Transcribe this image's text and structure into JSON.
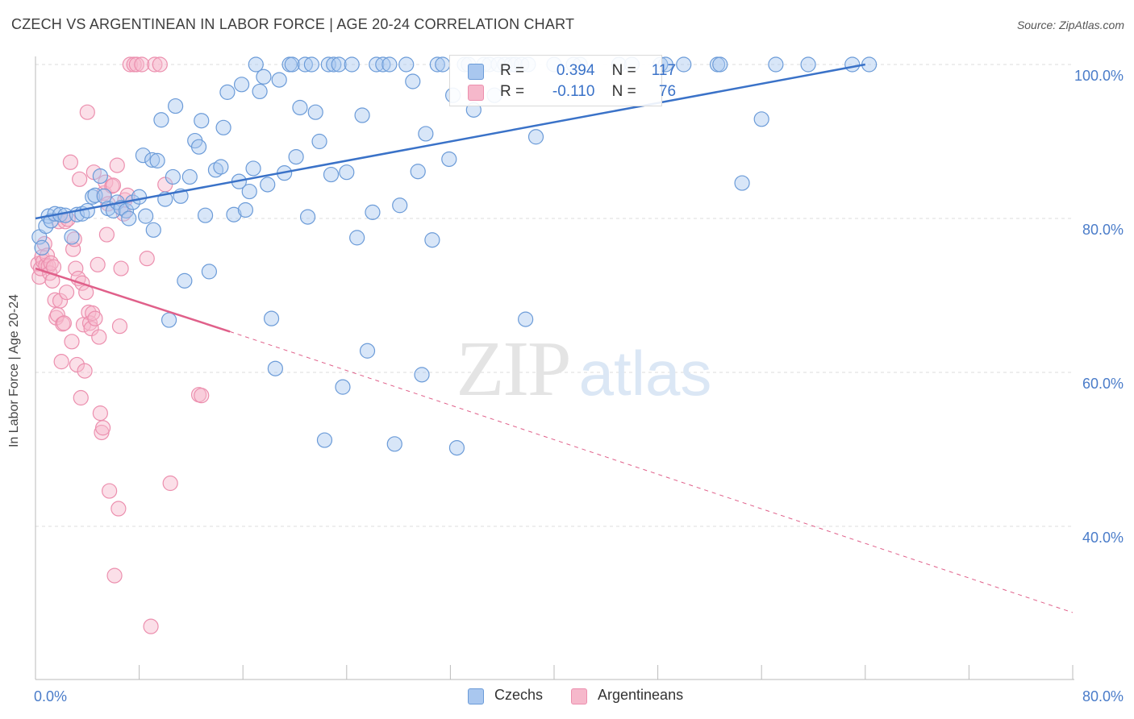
{
  "title": "CZECH VS ARGENTINEAN IN LABOR FORCE | AGE 20-24 CORRELATION CHART",
  "source": "Source: ZipAtlas.com",
  "watermark": {
    "zip": "ZIP",
    "atlas": "atlas"
  },
  "colors": {
    "czech_fill": "#a9c7ef",
    "czech_stroke": "#6b9bd8",
    "czech_line": "#3a72c8",
    "arg_fill": "#f6b8cb",
    "arg_stroke": "#ec8fae",
    "arg_line": "#e0608a",
    "grid": "#dcdcdc",
    "tick_label": "#4a7cc9"
  },
  "legend": {
    "czech": {
      "r_label": "R =",
      "r_value": "0.394",
      "n_label": "N =",
      "n_value": "117"
    },
    "arg": {
      "r_label": "R =",
      "r_value": "-0.110",
      "n_label": "N =",
      "n_value": "76"
    }
  },
  "bottom_legend": {
    "czech": "Czechs",
    "arg": "Argentineans"
  },
  "chart_data": {
    "type": "scatter",
    "title": "CZECH VS ARGENTINEAN IN LABOR FORCE | AGE 20-24 CORRELATION CHART",
    "ylabel": "In Labor Force | Age 20-24",
    "xlabel": "",
    "xlim": [
      0,
      80
    ],
    "ylim": [
      20,
      102
    ],
    "x_tick_labels": [
      {
        "value": 0,
        "label": "0.0%"
      },
      {
        "value": 80,
        "label": "80.0%"
      }
    ],
    "y_tick_labels": [
      {
        "value": 100,
        "label": "100.0%"
      },
      {
        "value": 80,
        "label": "80.0%"
      },
      {
        "value": 60,
        "label": "60.0%"
      },
      {
        "value": 40,
        "label": "40.0%"
      }
    ],
    "grid": true,
    "legend_position": "top-center",
    "series": [
      {
        "name": "Czechs",
        "r": 0.394,
        "n": 117,
        "trend": {
          "x0": 0,
          "y0": 80.0,
          "x1": 64,
          "y1": 100.0
        },
        "points": [
          [
            0.3,
            77.6
          ],
          [
            0.5,
            76.2
          ],
          [
            0.8,
            79.0
          ],
          [
            1.0,
            80.3
          ],
          [
            1.2,
            79.7
          ],
          [
            1.5,
            80.6
          ],
          [
            1.9,
            80.5
          ],
          [
            2.3,
            80.4
          ],
          [
            2.8,
            77.6
          ],
          [
            3.2,
            80.5
          ],
          [
            3.6,
            80.6
          ],
          [
            4.0,
            81.0
          ],
          [
            4.4,
            82.8
          ],
          [
            4.6,
            83.0
          ],
          [
            5.0,
            85.5
          ],
          [
            5.3,
            82.9
          ],
          [
            5.6,
            81.3
          ],
          [
            6.0,
            81.0
          ],
          [
            6.3,
            82.1
          ],
          [
            6.6,
            81.4
          ],
          [
            7.0,
            81.0
          ],
          [
            7.2,
            80.0
          ],
          [
            7.5,
            82.1
          ],
          [
            8.0,
            82.8
          ],
          [
            8.3,
            88.2
          ],
          [
            8.5,
            80.3
          ],
          [
            9.0,
            87.6
          ],
          [
            9.1,
            78.5
          ],
          [
            9.4,
            87.5
          ],
          [
            9.7,
            92.8
          ],
          [
            10.0,
            82.5
          ],
          [
            10.3,
            66.8
          ],
          [
            10.6,
            85.4
          ],
          [
            10.8,
            94.6
          ],
          [
            11.2,
            82.9
          ],
          [
            11.5,
            71.9
          ],
          [
            11.9,
            85.4
          ],
          [
            12.3,
            90.1
          ],
          [
            12.6,
            89.3
          ],
          [
            12.8,
            92.7
          ],
          [
            13.1,
            80.4
          ],
          [
            13.4,
            73.1
          ],
          [
            13.9,
            86.3
          ],
          [
            14.3,
            86.7
          ],
          [
            14.5,
            91.8
          ],
          [
            14.8,
            96.4
          ],
          [
            15.3,
            80.5
          ],
          [
            15.7,
            84.8
          ],
          [
            15.9,
            97.4
          ],
          [
            16.2,
            81.1
          ],
          [
            16.5,
            83.5
          ],
          [
            16.8,
            86.5
          ],
          [
            17.0,
            100.0
          ],
          [
            17.3,
            96.5
          ],
          [
            17.6,
            98.4
          ],
          [
            17.9,
            84.4
          ],
          [
            18.2,
            67.0
          ],
          [
            18.5,
            60.5
          ],
          [
            18.8,
            98.0
          ],
          [
            19.2,
            85.9
          ],
          [
            19.6,
            100.0
          ],
          [
            19.8,
            100.0
          ],
          [
            20.1,
            88.0
          ],
          [
            20.4,
            94.4
          ],
          [
            20.8,
            100.0
          ],
          [
            21.3,
            100.0
          ],
          [
            21.0,
            80.2
          ],
          [
            21.6,
            93.8
          ],
          [
            21.9,
            90.0
          ],
          [
            22.3,
            51.2
          ],
          [
            22.6,
            100.0
          ],
          [
            22.8,
            85.7
          ],
          [
            23.0,
            100.0
          ],
          [
            23.4,
            100.0
          ],
          [
            23.7,
            58.1
          ],
          [
            24.0,
            86.0
          ],
          [
            24.4,
            100.0
          ],
          [
            24.8,
            77.5
          ],
          [
            25.2,
            93.4
          ],
          [
            25.6,
            62.8
          ],
          [
            26.0,
            80.8
          ],
          [
            26.3,
            100.0
          ],
          [
            26.8,
            100.0
          ],
          [
            27.3,
            100.0
          ],
          [
            27.7,
            50.7
          ],
          [
            28.1,
            81.7
          ],
          [
            28.6,
            100.0
          ],
          [
            29.1,
            97.8
          ],
          [
            29.5,
            86.1
          ],
          [
            29.8,
            59.7
          ],
          [
            30.1,
            91.0
          ],
          [
            30.6,
            77.2
          ],
          [
            31.0,
            100.0
          ],
          [
            31.4,
            100.0
          ],
          [
            31.9,
            87.7
          ],
          [
            32.2,
            96.0
          ],
          [
            32.5,
            50.2
          ],
          [
            33.1,
            100.0
          ],
          [
            33.4,
            100.0
          ],
          [
            33.8,
            94.1
          ],
          [
            34.6,
            100.0
          ],
          [
            35.0,
            100.0
          ],
          [
            35.4,
            96.0
          ],
          [
            35.7,
            100.0
          ],
          [
            36.2,
            100.0
          ],
          [
            36.7,
            100.0
          ],
          [
            37.0,
            100.0
          ],
          [
            37.5,
            100.0
          ],
          [
            37.8,
            66.9
          ],
          [
            38.0,
            100.0
          ],
          [
            38.6,
            90.6
          ],
          [
            40.0,
            100.0
          ],
          [
            42.0,
            100.0
          ],
          [
            45.0,
            100.0
          ],
          [
            48.2,
            100.0
          ],
          [
            48.6,
            100.0
          ],
          [
            52.6,
            100.0
          ],
          [
            52.8,
            100.0
          ],
          [
            56.0,
            92.9
          ],
          [
            57.1,
            100.0
          ],
          [
            59.6,
            100.0
          ],
          [
            63.0,
            100.0
          ],
          [
            64.3,
            100.0
          ],
          [
            54.5,
            84.6
          ],
          [
            41.5,
            100.0
          ],
          [
            46.0,
            100.0
          ],
          [
            50.0,
            100.0
          ]
        ]
      },
      {
        "name": "Argentineans",
        "r": -0.11,
        "n": 76,
        "trend": {
          "x0": 0,
          "y0": 73.5,
          "x1": 15,
          "y1": 65.3,
          "x_dashed_end": 80,
          "y_dashed_end": 28.8
        },
        "points": [
          [
            0.2,
            74.1
          ],
          [
            0.3,
            72.4
          ],
          [
            0.4,
            73.5
          ],
          [
            0.5,
            75.0
          ],
          [
            0.6,
            74.4
          ],
          [
            0.7,
            76.7
          ],
          [
            0.8,
            73.9
          ],
          [
            0.9,
            75.2
          ],
          [
            1.0,
            73.8
          ],
          [
            1.1,
            72.9
          ],
          [
            1.2,
            74.2
          ],
          [
            1.3,
            71.9
          ],
          [
            1.4,
            73.7
          ],
          [
            1.5,
            69.4
          ],
          [
            1.6,
            67.1
          ],
          [
            1.7,
            67.5
          ],
          [
            1.8,
            79.6
          ],
          [
            1.9,
            69.3
          ],
          [
            2.0,
            61.4
          ],
          [
            2.1,
            66.3
          ],
          [
            2.2,
            66.4
          ],
          [
            2.3,
            79.6
          ],
          [
            2.4,
            70.4
          ],
          [
            2.5,
            79.9
          ],
          [
            2.7,
            87.3
          ],
          [
            2.8,
            64.0
          ],
          [
            2.9,
            76.0
          ],
          [
            3.0,
            77.3
          ],
          [
            3.1,
            73.5
          ],
          [
            3.2,
            61.0
          ],
          [
            3.3,
            72.2
          ],
          [
            3.4,
            85.1
          ],
          [
            3.5,
            56.7
          ],
          [
            3.6,
            71.6
          ],
          [
            3.7,
            66.2
          ],
          [
            3.8,
            60.2
          ],
          [
            3.9,
            70.4
          ],
          [
            4.0,
            93.8
          ],
          [
            4.1,
            67.8
          ],
          [
            4.2,
            66.4
          ],
          [
            4.3,
            65.7
          ],
          [
            4.4,
            67.7
          ],
          [
            4.5,
            86.0
          ],
          [
            4.6,
            67.0
          ],
          [
            4.8,
            74.0
          ],
          [
            4.9,
            64.6
          ],
          [
            5.0,
            54.7
          ],
          [
            5.1,
            52.2
          ],
          [
            5.2,
            52.8
          ],
          [
            5.3,
            83.3
          ],
          [
            5.4,
            84.7
          ],
          [
            5.5,
            77.9
          ],
          [
            5.6,
            81.9
          ],
          [
            5.7,
            44.6
          ],
          [
            5.9,
            84.2
          ],
          [
            6.0,
            84.3
          ],
          [
            6.1,
            33.6
          ],
          [
            6.3,
            86.9
          ],
          [
            6.4,
            42.3
          ],
          [
            6.5,
            66.0
          ],
          [
            6.6,
            73.5
          ],
          [
            6.8,
            80.6
          ],
          [
            6.9,
            82.4
          ],
          [
            7.1,
            83.0
          ],
          [
            7.3,
            100.0
          ],
          [
            7.6,
            100.0
          ],
          [
            7.8,
            100.0
          ],
          [
            8.2,
            100.0
          ],
          [
            8.6,
            74.8
          ],
          [
            8.9,
            27.0
          ],
          [
            9.2,
            100.0
          ],
          [
            9.6,
            100.0
          ],
          [
            10.0,
            84.4
          ],
          [
            10.4,
            45.6
          ],
          [
            12.6,
            57.1
          ],
          [
            12.8,
            57.0
          ]
        ]
      }
    ]
  }
}
